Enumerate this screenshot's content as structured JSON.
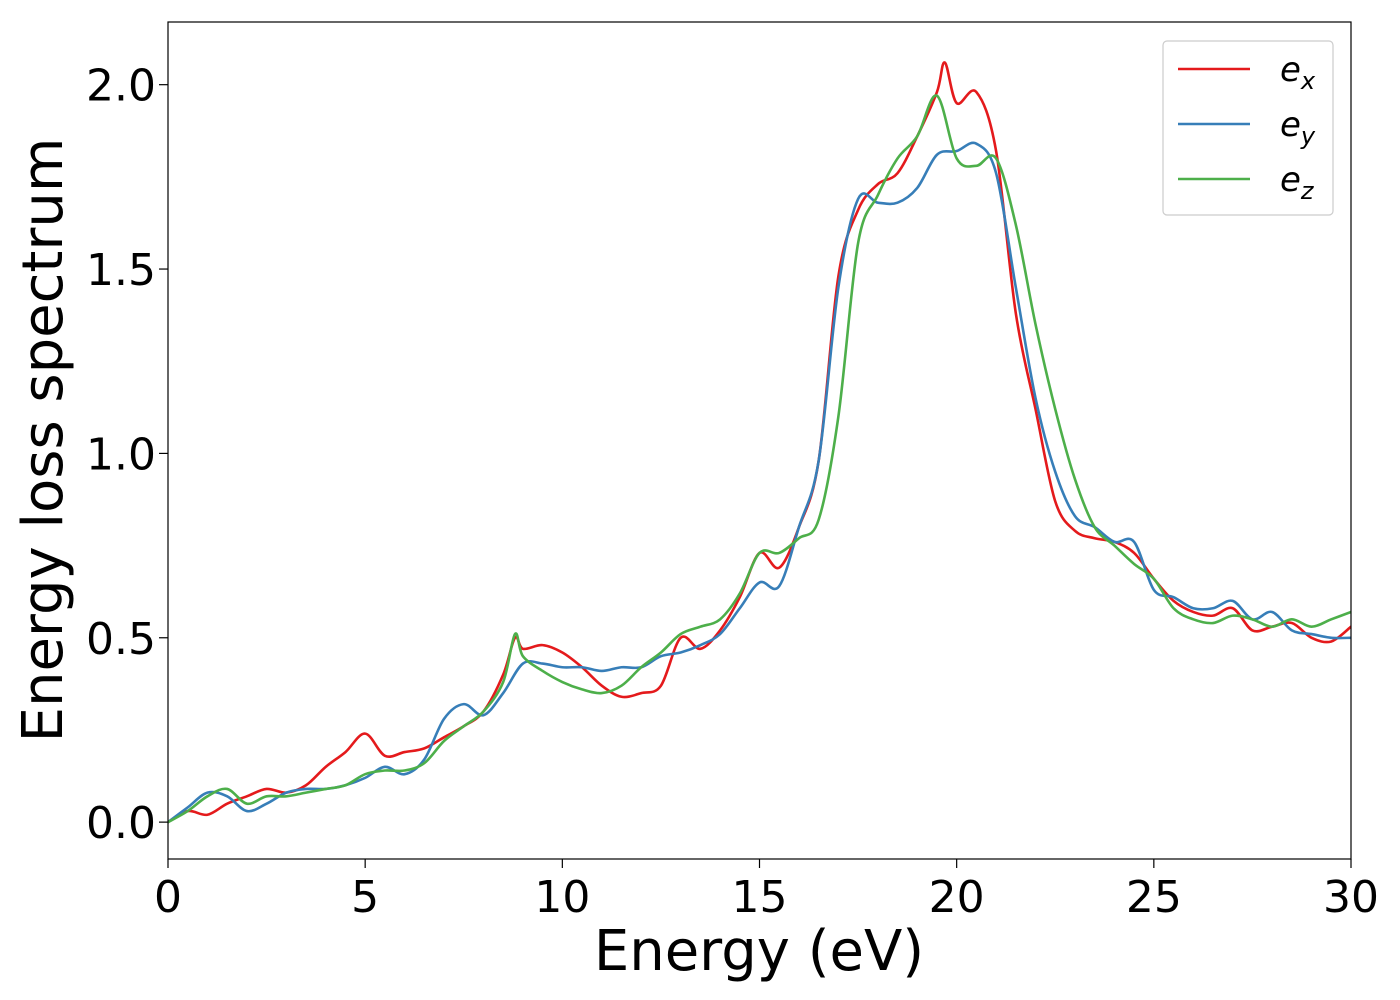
{
  "chart_data": {
    "type": "line",
    "title": "",
    "xlabel": "Energy (eV)",
    "ylabel": "Energy loss spectrum",
    "xlim": [
      0,
      30
    ],
    "ylim": [
      -0.1,
      2.17
    ],
    "xticks": [
      0,
      5,
      10,
      15,
      20,
      25,
      30
    ],
    "xtick_labels": [
      "0",
      "5",
      "10",
      "15",
      "20",
      "25",
      "30"
    ],
    "yticks": [
      0.0,
      0.5,
      1.0,
      1.5,
      2.0
    ],
    "ytick_labels": [
      "0.0",
      "0.5",
      "1.0",
      "1.5",
      "2.0"
    ],
    "grid": false,
    "legend_position": "top-right",
    "series": [
      {
        "name": "e",
        "name_sub": "x",
        "color": "#e41a1c",
        "x": [
          0,
          0.5,
          1,
          1.5,
          2,
          2.5,
          3,
          3.5,
          4,
          4.5,
          5,
          5.5,
          6,
          6.5,
          7,
          7.5,
          8,
          8.5,
          8.8,
          9,
          9.5,
          10,
          10.5,
          11,
          11.5,
          12,
          12.5,
          13,
          13.5,
          14,
          14.5,
          15,
          15.5,
          16,
          16.5,
          17,
          17.5,
          18,
          18.5,
          19,
          19.5,
          19.7,
          20,
          20.5,
          21,
          21.5,
          22,
          22.5,
          23,
          23.5,
          24,
          24.5,
          25,
          25.5,
          26,
          26.5,
          27,
          27.5,
          28,
          28.5,
          29,
          29.5,
          30
        ],
        "y": [
          0.0,
          0.03,
          0.02,
          0.05,
          0.07,
          0.09,
          0.08,
          0.1,
          0.15,
          0.19,
          0.24,
          0.18,
          0.19,
          0.2,
          0.23,
          0.26,
          0.3,
          0.4,
          0.5,
          0.47,
          0.48,
          0.46,
          0.42,
          0.37,
          0.34,
          0.35,
          0.37,
          0.5,
          0.47,
          0.52,
          0.61,
          0.73,
          0.69,
          0.8,
          0.98,
          1.48,
          1.66,
          1.73,
          1.76,
          1.86,
          1.98,
          2.06,
          1.95,
          1.98,
          1.82,
          1.38,
          1.12,
          0.87,
          0.79,
          0.77,
          0.76,
          0.73,
          0.66,
          0.6,
          0.57,
          0.56,
          0.58,
          0.52,
          0.53,
          0.54,
          0.5,
          0.49,
          0.53
        ]
      },
      {
        "name": "e",
        "name_sub": "y",
        "color": "#377eb8",
        "x": [
          0,
          0.5,
          1,
          1.5,
          2,
          2.5,
          3,
          3.5,
          4,
          4.5,
          5,
          5.5,
          6,
          6.5,
          7,
          7.5,
          8,
          8.5,
          9,
          9.5,
          10,
          10.5,
          11,
          11.5,
          12,
          12.5,
          13,
          13.5,
          14,
          14.5,
          15,
          15.5,
          16,
          16.5,
          17,
          17.5,
          18,
          18.5,
          19,
          19.5,
          20,
          20.5,
          21,
          21.5,
          22,
          22.5,
          23,
          23.5,
          24,
          24.5,
          25,
          25.5,
          26,
          26.5,
          27,
          27.5,
          28,
          28.5,
          29,
          29.5,
          30
        ],
        "y": [
          0.0,
          0.04,
          0.08,
          0.07,
          0.03,
          0.05,
          0.08,
          0.09,
          0.09,
          0.1,
          0.12,
          0.15,
          0.13,
          0.17,
          0.28,
          0.32,
          0.29,
          0.35,
          0.43,
          0.43,
          0.42,
          0.42,
          0.41,
          0.42,
          0.42,
          0.45,
          0.46,
          0.48,
          0.51,
          0.58,
          0.65,
          0.64,
          0.8,
          0.98,
          1.45,
          1.69,
          1.68,
          1.68,
          1.72,
          1.81,
          1.82,
          1.84,
          1.76,
          1.45,
          1.15,
          0.95,
          0.83,
          0.8,
          0.76,
          0.76,
          0.63,
          0.61,
          0.58,
          0.58,
          0.6,
          0.55,
          0.57,
          0.52,
          0.51,
          0.5,
          0.5
        ]
      },
      {
        "name": "e",
        "name_sub": "z",
        "color": "#4daf4a",
        "x": [
          0,
          0.5,
          1,
          1.5,
          2,
          2.5,
          3,
          3.5,
          4,
          4.5,
          5,
          5.5,
          6,
          6.5,
          7,
          7.5,
          8,
          8.5,
          8.8,
          9,
          9.5,
          10,
          10.5,
          11,
          11.5,
          12,
          12.5,
          13,
          13.5,
          14,
          14.5,
          15,
          15.5,
          16,
          16.5,
          17,
          17.5,
          18,
          18.5,
          19,
          19.5,
          20,
          20.5,
          21,
          21.5,
          22,
          22.5,
          23,
          23.5,
          24,
          24.5,
          25,
          25.5,
          26,
          26.5,
          27,
          27.5,
          28,
          28.5,
          29,
          29.5,
          30
        ],
        "y": [
          0.0,
          0.03,
          0.07,
          0.09,
          0.05,
          0.07,
          0.07,
          0.08,
          0.09,
          0.1,
          0.13,
          0.14,
          0.14,
          0.16,
          0.22,
          0.26,
          0.3,
          0.38,
          0.51,
          0.45,
          0.41,
          0.38,
          0.36,
          0.35,
          0.37,
          0.42,
          0.46,
          0.51,
          0.53,
          0.55,
          0.62,
          0.73,
          0.73,
          0.77,
          0.82,
          1.1,
          1.57,
          1.7,
          1.8,
          1.86,
          1.97,
          1.8,
          1.78,
          1.8,
          1.62,
          1.35,
          1.12,
          0.93,
          0.8,
          0.75,
          0.7,
          0.66,
          0.58,
          0.55,
          0.54,
          0.56,
          0.55,
          0.53,
          0.55,
          0.53,
          0.55,
          0.57
        ]
      }
    ]
  }
}
